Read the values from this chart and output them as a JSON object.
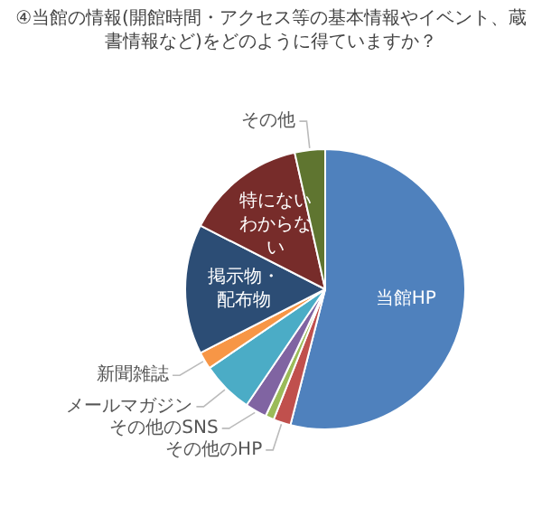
{
  "chart_data": {
    "type": "pie",
    "title": "④当館の情報(開館時間・アクセス等の基本情報やイベント、蔵書情報など)をどのように得ていますか？",
    "categories": [
      "当館HP",
      "その他のHP",
      null,
      "その他のSNS",
      "メールマガジン",
      "新聞雑誌",
      "掲示物・配布物",
      "特にないわからない",
      "その他"
    ],
    "values": [
      54,
      2,
      1,
      2.5,
      6,
      2,
      15,
      14,
      3.5
    ],
    "colors": [
      "#4f81bd",
      "#c0504d",
      "#9bbb59",
      "#8064a2",
      "#4bacc6",
      "#f79646",
      "#2c4d75",
      "#772c2a",
      "#5f7530"
    ],
    "legend": false
  }
}
